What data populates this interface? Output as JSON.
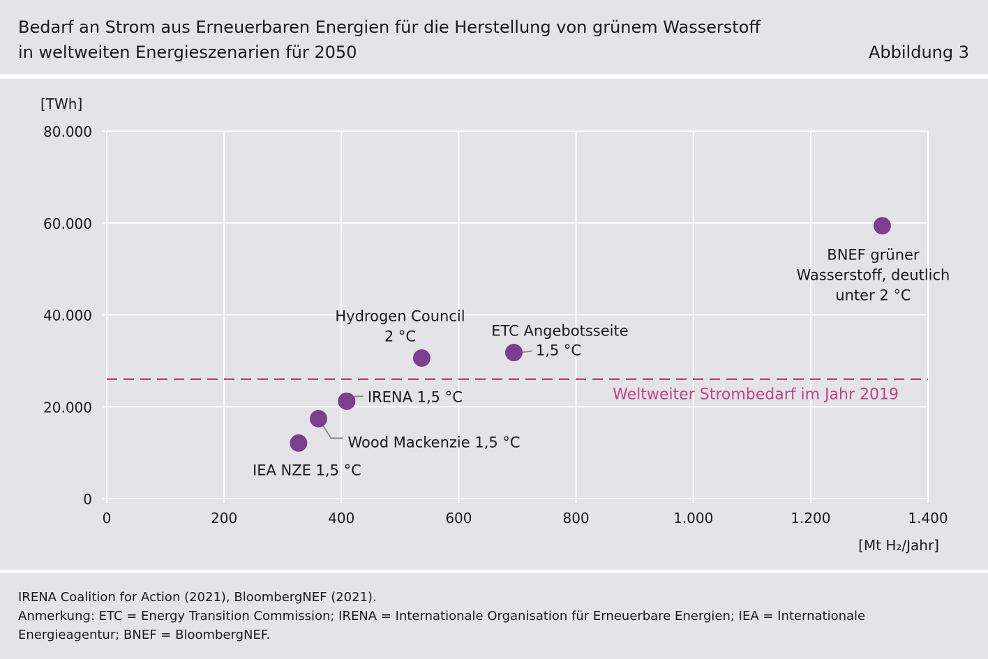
{
  "header": {
    "title_line1": "Bedarf an Strom aus Erneuerbaren Energien für die Herstellung von grünem Wasserstoff",
    "title_line2": "in weltweiten Energieszenarien für 2050",
    "figure_label": "Abbildung 3"
  },
  "footer": {
    "source": "IRENA Coalition for Action (2021), BloombergNEF (2021).",
    "note_line1": "Anmerkung: ETC = Energy Transition Commission; IRENA = Internationale Organisation für Erneuerbare Energien; IEA = Internationale",
    "note_line2": "Energieagentur; BNEF = BloombergNEF."
  },
  "colors": {
    "background_panel": "#e3e3e8",
    "grid": "#ffffff",
    "points": "#7b3f8e",
    "reference_line": "#c0448a",
    "leader": "#8c8c8c"
  },
  "chart_data": {
    "type": "scatter",
    "title": "Bedarf an Strom aus Erneuerbaren Energien für die Herstellung von grünem Wasserstoff in weltweiten Energieszenarien für 2050",
    "xlabel": "[Mt H₂/Jahr]",
    "ylabel": "[TWh]",
    "xlim": [
      0,
      1400
    ],
    "ylim": [
      0,
      80000
    ],
    "grid": true,
    "x_ticks": [
      {
        "value": 0,
        "label": "0"
      },
      {
        "value": 200,
        "label": "200"
      },
      {
        "value": 400,
        "label": "400"
      },
      {
        "value": 600,
        "label": "600"
      },
      {
        "value": 800,
        "label": "800"
      },
      {
        "value": 1000,
        "label": "1.000"
      },
      {
        "value": 1200,
        "label": "1.200"
      },
      {
        "value": 1400,
        "label": "1.400"
      }
    ],
    "y_ticks": [
      {
        "value": 0,
        "label": "0"
      },
      {
        "value": 20000,
        "label": "20.000"
      },
      {
        "value": 40000,
        "label": "40.000"
      },
      {
        "value": 60000,
        "label": "60.000"
      },
      {
        "value": 80000,
        "label": "80.000"
      }
    ],
    "points": [
      {
        "label_lines": [
          "IEA NZE 1,5 °C"
        ],
        "x": 327,
        "y": 12100
      },
      {
        "label_lines": [
          "Wood Mackenzie 1,5 °C"
        ],
        "x": 361,
        "y": 17400
      },
      {
        "label_lines": [
          "IRENA 1,5 °C"
        ],
        "x": 409,
        "y": 21200
      },
      {
        "label_lines": [
          "Hydrogen  Council",
          "2 °C"
        ],
        "x": 537,
        "y": 30600
      },
      {
        "label_lines": [
          "ETC Angebotsseite",
          "1,5 °C"
        ],
        "x": 694,
        "y": 31800
      },
      {
        "label_lines": [
          "BNEF grüner",
          "Wasserstoff, deutlich",
          "unter 2 °C"
        ],
        "x": 1322,
        "y": 59400
      }
    ],
    "reference_lines": [
      {
        "label": "Weltweiter Strombedarf im Jahr 2019",
        "y": 26000
      }
    ]
  }
}
